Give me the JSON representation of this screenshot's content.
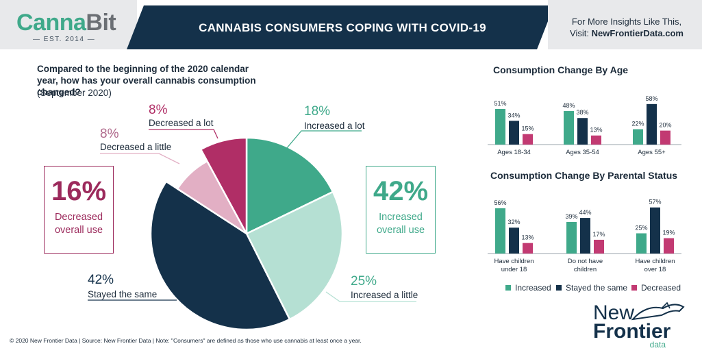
{
  "header": {
    "logo_main": "Canna",
    "logo_accent": "Bit",
    "logo_est": "— EST. 2014 —",
    "title": "CANNABIS CONSUMERS COPING WITH COVID-19",
    "right_line1": "For More Insights Like This,",
    "right_line2_prefix": "Visit: ",
    "right_line2_link": "NewFrontierData.com"
  },
  "question": {
    "text": "Compared to the beginning of the 2020 calendar year, how has your overall cannabis consumption changed?",
    "subtext": "(September 2020)"
  },
  "decreased_box": {
    "value": "16%",
    "line1": "Decreased",
    "line2": "overall use",
    "color": "#9c2a5c"
  },
  "increased_box": {
    "value": "42%",
    "line1": "Increased",
    "line2": "overall use",
    "color": "#3fa98a"
  },
  "colors": {
    "increased_lot": "#3fa98a",
    "increased_little": "#b5e0d3",
    "same": "#14314a",
    "decreased_little": "#e2afc4",
    "decreased_lot": "#b02e66",
    "bar_increased": "#3fa98a",
    "bar_same": "#14314a",
    "bar_decreased": "#c23a72"
  },
  "chart_data": [
    {
      "type": "pie",
      "slices": [
        {
          "label": "Increased a lot",
          "value": 18,
          "display": "18%"
        },
        {
          "label": "Increased a little",
          "value": 25,
          "display": "25%"
        },
        {
          "label": "Stayed the same",
          "value": 42,
          "display": "42%"
        },
        {
          "label": "Decreased a little",
          "value": 8,
          "display": "8%"
        },
        {
          "label": "Decreased a lot",
          "value": 8,
          "display": "8%"
        }
      ]
    },
    {
      "type": "bar",
      "title": "Consumption Change By Age",
      "categories": [
        "Ages 18-34",
        "Ages 35-54",
        "Ages 55+"
      ],
      "series": [
        {
          "name": "Increased",
          "values": [
            51,
            48,
            22
          ]
        },
        {
          "name": "Stayed the same",
          "values": [
            34,
            38,
            58
          ]
        },
        {
          "name": "Decreased",
          "values": [
            15,
            13,
            20
          ]
        }
      ]
    },
    {
      "type": "bar",
      "title": "Consumption Change By Parental Status",
      "categories": [
        "Have children under 18",
        "Do not have children",
        "Have children over 18"
      ],
      "category_lines": [
        [
          "Have children",
          "under 18"
        ],
        [
          "Do not have",
          "children"
        ],
        [
          "Have children",
          "over 18"
        ]
      ],
      "series": [
        {
          "name": "Increased",
          "values": [
            56,
            39,
            25
          ]
        },
        {
          "name": "Stayed the same",
          "values": [
            32,
            44,
            57
          ]
        },
        {
          "name": "Decreased",
          "values": [
            13,
            17,
            19
          ]
        }
      ]
    }
  ],
  "legend": [
    "Increased",
    "Stayed the same",
    "Decreased"
  ],
  "footnote": "© 2020  New Frontier Data | Source: New Frontier Data | Note: \"Consumers\" are defined as those who use cannabis at least once a year.",
  "brand": {
    "line1": "New",
    "line2": "Frontier",
    "line3": "data"
  }
}
